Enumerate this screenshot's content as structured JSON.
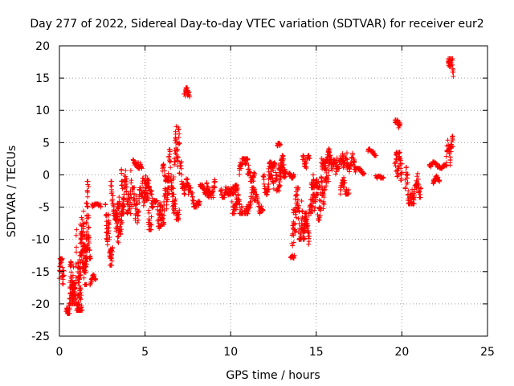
{
  "chart_data": {
    "type": "scatter",
    "title": "Day 277 of 2022, Sidereal Day-to-day VTEC variation (SDTVAR) for receiver eur2",
    "xlabel": "GPS time / hours",
    "ylabel": "SDTVAR / TECUs",
    "xlim": [
      0,
      25
    ],
    "ylim": [
      -25,
      20
    ],
    "xticks": [
      "0",
      "5",
      "10",
      "15",
      "20",
      "25"
    ],
    "yticks": [
      "-25",
      "-20",
      "-15",
      "-10",
      "-5",
      "0",
      "5",
      "10",
      "15",
      "20"
    ],
    "grid": true,
    "marker": "+",
    "color": "#ff0000",
    "clusters": [
      {
        "x": [
          0.0,
          0.25
        ],
        "y": [
          -19,
          -13
        ]
      },
      {
        "x": [
          0.4,
          0.9
        ],
        "y": [
          -21.5,
          -15
        ]
      },
      {
        "x": [
          0.6,
          1.0
        ],
        "y": [
          -20,
          -8.5
        ]
      },
      {
        "x": [
          1.0,
          1.3
        ],
        "y": [
          -21,
          -10
        ]
      },
      {
        "x": [
          1.1,
          1.4
        ],
        "y": [
          -19,
          -5
        ]
      },
      {
        "x": [
          1.4,
          1.7
        ],
        "y": [
          -17,
          -1
        ]
      },
      {
        "x": [
          1.5,
          1.8
        ],
        "y": [
          -13,
          -6
        ]
      },
      {
        "x": [
          1.8,
          2.1
        ],
        "y": [
          -17.5,
          -15.5
        ]
      },
      {
        "x": [
          1.9,
          2.4
        ],
        "y": [
          -6,
          -4.5
        ]
      },
      {
        "x": [
          2.7,
          3.1
        ],
        "y": [
          -14,
          -4
        ]
      },
      {
        "x": [
          3.0,
          3.5
        ],
        "y": [
          -7,
          -1
        ]
      },
      {
        "x": [
          3.3,
          3.8
        ],
        "y": [
          -12,
          -3
        ]
      },
      {
        "x": [
          3.6,
          4.2
        ],
        "y": [
          -6,
          3
        ]
      },
      {
        "x": [
          4.2,
          4.8
        ],
        "y": [
          -9.5,
          -2
        ]
      },
      {
        "x": [
          4.3,
          4.8
        ],
        "y": [
          1,
          3.5
        ]
      },
      {
        "x": [
          4.8,
          5.4
        ],
        "y": [
          -8.5,
          -0.5
        ]
      },
      {
        "x": [
          5.0,
          5.4
        ],
        "y": [
          -3,
          0
        ]
      },
      {
        "x": [
          5.4,
          6.0
        ],
        "y": [
          -8,
          -4
        ]
      },
      {
        "x": [
          5.8,
          6.4
        ],
        "y": [
          -9.5,
          -2
        ]
      },
      {
        "x": [
          6.0,
          6.4
        ],
        "y": [
          -1,
          2
        ]
      },
      {
        "x": [
          6.4,
          7.0
        ],
        "y": [
          -3,
          7.5
        ]
      },
      {
        "x": [
          6.6,
          7.0
        ],
        "y": [
          -7,
          -3
        ]
      },
      {
        "x": [
          7.0,
          7.6
        ],
        "y": [
          -3,
          2
        ]
      },
      {
        "x": [
          7.3,
          7.6
        ],
        "y": [
          10.5,
          13.5
        ]
      },
      {
        "x": [
          7.6,
          8.2
        ],
        "y": [
          -5,
          -2
        ]
      },
      {
        "x": [
          8.2,
          8.8
        ],
        "y": [
          -3.5,
          -1.5
        ]
      },
      {
        "x": [
          8.6,
          9.1
        ],
        "y": [
          -3.5,
          1
        ]
      },
      {
        "x": [
          9.4,
          9.9
        ],
        "y": [
          -3.5,
          -0.5
        ]
      },
      {
        "x": [
          9.9,
          10.4
        ],
        "y": [
          -3,
          1.5
        ]
      },
      {
        "x": [
          10.1,
          10.7
        ],
        "y": [
          -6,
          0
        ]
      },
      {
        "x": [
          10.5,
          11.0
        ],
        "y": [
          -2,
          2.5
        ]
      },
      {
        "x": [
          10.8,
          11.4
        ],
        "y": [
          -6,
          -2
        ]
      },
      {
        "x": [
          11.0,
          11.4
        ],
        "y": [
          -1,
          2
        ]
      },
      {
        "x": [
          11.4,
          11.9
        ],
        "y": [
          -6,
          -3
        ]
      },
      {
        "x": [
          11.9,
          12.5
        ],
        "y": [
          -4,
          0
        ]
      },
      {
        "x": [
          12.2,
          12.7
        ],
        "y": [
          -2,
          2
        ]
      },
      {
        "x": [
          12.7,
          12.9
        ],
        "y": [
          4.5,
          5.5
        ]
      },
      {
        "x": [
          12.7,
          13.2
        ],
        "y": [
          -2.5,
          1.5
        ]
      },
      {
        "x": [
          12.8,
          13.2
        ],
        "y": [
          -1,
          3
        ]
      },
      {
        "x": [
          13.4,
          13.7
        ],
        "y": [
          -0.5,
          1.5
        ]
      },
      {
        "x": [
          13.5,
          13.7
        ],
        "y": [
          -13,
          -12
        ]
      },
      {
        "x": [
          13.6,
          14.0
        ],
        "y": [
          -11,
          -2
        ]
      },
      {
        "x": [
          14.0,
          14.4
        ],
        "y": [
          -10,
          -1
        ]
      },
      {
        "x": [
          14.3,
          14.6
        ],
        "y": [
          -11,
          -6
        ]
      },
      {
        "x": [
          14.2,
          14.6
        ],
        "y": [
          0,
          3
        ]
      },
      {
        "x": [
          14.6,
          15.1
        ],
        "y": [
          -9,
          -3
        ]
      },
      {
        "x": [
          14.7,
          15.2
        ],
        "y": [
          -2,
          3
        ]
      },
      {
        "x": [
          15.1,
          15.6
        ],
        "y": [
          -7,
          1
        ]
      },
      {
        "x": [
          15.3,
          15.8
        ],
        "y": [
          0,
          4.5
        ]
      },
      {
        "x": [
          15.6,
          16.2
        ],
        "y": [
          -1,
          3
        ]
      },
      {
        "x": [
          16.2,
          16.8
        ],
        "y": [
          1,
          6
        ]
      },
      {
        "x": [
          16.4,
          16.9
        ],
        "y": [
          -3,
          1
        ]
      },
      {
        "x": [
          16.8,
          17.3
        ],
        "y": [
          0,
          3.5
        ]
      },
      {
        "x": [
          17.3,
          17.8
        ],
        "y": [
          0,
          1
        ]
      },
      {
        "x": [
          18.0,
          18.5
        ],
        "y": [
          3,
          4
        ]
      },
      {
        "x": [
          18.5,
          18.9
        ],
        "y": [
          -1,
          0
        ]
      },
      {
        "x": [
          19.6,
          19.9
        ],
        "y": [
          6,
          8.5
        ]
      },
      {
        "x": [
          19.6,
          20.0
        ],
        "y": [
          -3.5,
          3.5
        ]
      },
      {
        "x": [
          20.2,
          20.7
        ],
        "y": [
          -4.5,
          3
        ]
      },
      {
        "x": [
          20.6,
          21.1
        ],
        "y": [
          -3.5,
          1
        ]
      },
      {
        "x": [
          21.6,
          22.1
        ],
        "y": [
          1,
          2
        ]
      },
      {
        "x": [
          21.8,
          22.2
        ],
        "y": [
          -2,
          0
        ]
      },
      {
        "x": [
          22.1,
          22.6
        ],
        "y": [
          1,
          2
        ]
      },
      {
        "x": [
          22.6,
          23.0
        ],
        "y": [
          1.5,
          6
        ]
      },
      {
        "x": [
          22.7,
          23.0
        ],
        "y": [
          13,
          18
        ]
      }
    ]
  }
}
